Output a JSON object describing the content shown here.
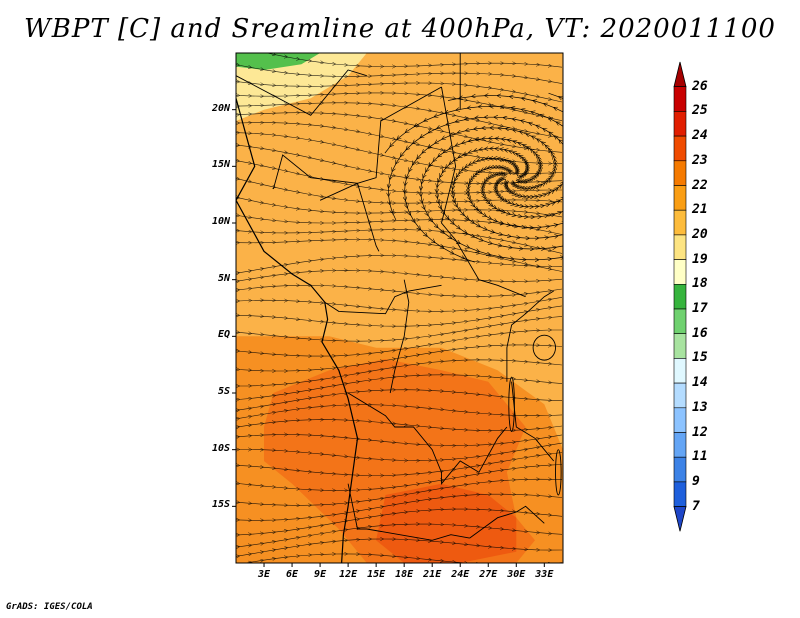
{
  "title": "WBPT [C] and Sreamline at 400hPa, VT: 2020011100",
  "footer": "GrADS: IGES/COLA",
  "map": {
    "lon_range": [
      0,
      35
    ],
    "lat_range": [
      -20,
      25
    ],
    "lat_ticks": [
      {
        "value": 20,
        "label": "20N"
      },
      {
        "value": 15,
        "label": "15N"
      },
      {
        "value": 10,
        "label": "10N"
      },
      {
        "value": 5,
        "label": "5N"
      },
      {
        "value": 0,
        "label": "EQ"
      },
      {
        "value": -5,
        "label": "5S"
      },
      {
        "value": -10,
        "label": "10S"
      },
      {
        "value": -15,
        "label": "15S"
      }
    ],
    "lon_ticks": [
      {
        "value": 3,
        "label": "3E"
      },
      {
        "value": 6,
        "label": "6E"
      },
      {
        "value": 9,
        "label": "9E"
      },
      {
        "value": 12,
        "label": "12E"
      },
      {
        "value": 15,
        "label": "15E"
      },
      {
        "value": 18,
        "label": "18E"
      },
      {
        "value": 21,
        "label": "21E"
      },
      {
        "value": 24,
        "label": "24E"
      },
      {
        "value": 27,
        "label": "27E"
      },
      {
        "value": 30,
        "label": "30E"
      },
      {
        "value": 33,
        "label": "33E"
      }
    ],
    "fields": {
      "background_class": "20-21",
      "regions": [
        {
          "class": "18-19",
          "description": "pale yellow northwest corner",
          "lonlat": [
            [
              0,
              25
            ],
            [
              14,
              25
            ],
            [
              12,
              23
            ],
            [
              8,
              21
            ],
            [
              3,
              20
            ],
            [
              0,
              19
            ]
          ]
        },
        {
          "class": "17-18",
          "description": "green patch",
          "lonlat": [
            [
              0,
              25
            ],
            [
              9,
              25
            ],
            [
              7,
              24
            ],
            [
              3,
              23.5
            ],
            [
              0,
              23.8
            ]
          ]
        },
        {
          "class": "21-22",
          "description": "orange band south",
          "lonlat": [
            [
              0,
              0
            ],
            [
              10,
              0
            ],
            [
              15,
              -1
            ],
            [
              22,
              -1
            ],
            [
              28,
              -3
            ],
            [
              33,
              -6
            ],
            [
              35,
              -10
            ],
            [
              35,
              -20
            ],
            [
              0,
              -20
            ]
          ]
        },
        {
          "class": "22-23",
          "description": "dark orange core",
          "lonlat": [
            [
              4,
              -5
            ],
            [
              10,
              -3
            ],
            [
              16,
              -2
            ],
            [
              22,
              -3
            ],
            [
              27,
              -4
            ],
            [
              31,
              -8
            ],
            [
              29,
              -12
            ],
            [
              30,
              -16
            ],
            [
              32,
              -18
            ],
            [
              30,
              -20
            ],
            [
              14,
              -20
            ],
            [
              11,
              -17
            ],
            [
              6,
              -13
            ],
            [
              3,
              -11
            ],
            [
              3,
              -8
            ]
          ]
        },
        {
          "class": "23-24",
          "description": "red-orange maximum",
          "lonlat": [
            [
              16,
              -14
            ],
            [
              22,
              -13
            ],
            [
              27,
              -14
            ],
            [
              30,
              -16
            ],
            [
              30,
              -19
            ],
            [
              24,
              -20
            ],
            [
              18,
              -20
            ],
            [
              15,
              -18
            ]
          ]
        }
      ]
    },
    "streamline_center": {
      "lon": 29.5,
      "lat": 14
    },
    "coastlines": [
      [
        [
          0,
          21
        ],
        [
          1,
          18
        ],
        [
          2,
          15
        ],
        [
          0,
          12
        ],
        [
          2,
          9
        ],
        [
          3,
          7.5
        ],
        [
          6,
          5.5
        ],
        [
          8,
          4.5
        ],
        [
          9.5,
          3
        ],
        [
          9.8,
          1.5
        ],
        [
          9.2,
          -0.5
        ],
        [
          11,
          -3
        ],
        [
          12,
          -5.5
        ],
        [
          13,
          -9
        ],
        [
          12.5,
          -12
        ],
        [
          12,
          -15
        ],
        [
          11.5,
          -17.5
        ],
        [
          11.3,
          -20
        ]
      ]
    ],
    "borders": [
      [
        [
          0,
          23
        ],
        [
          8,
          19.5
        ],
        [
          12,
          23.5
        ],
        [
          14,
          23
        ]
      ],
      [
        [
          4,
          13
        ],
        [
          5,
          16
        ],
        [
          8,
          14
        ],
        [
          13,
          13.5
        ],
        [
          15,
          8
        ],
        [
          15.3,
          7.5
        ]
      ],
      [
        [
          13,
          13.5
        ],
        [
          15,
          14
        ],
        [
          15.5,
          19
        ],
        [
          22,
          22
        ]
      ],
      [
        [
          24,
          20
        ],
        [
          24,
          25
        ]
      ],
      [
        [
          22,
          22
        ],
        [
          23.5,
          15
        ],
        [
          22,
          10
        ],
        [
          23.5,
          8.5
        ],
        [
          26,
          5
        ],
        [
          28,
          4.5
        ],
        [
          31,
          3.5
        ]
      ],
      [
        [
          9,
          12
        ],
        [
          13,
          13.5
        ]
      ],
      [
        [
          9.5,
          3
        ],
        [
          11,
          2.2
        ],
        [
          16,
          2
        ],
        [
          17,
          3.5
        ],
        [
          18.5,
          4
        ],
        [
          22,
          4.5
        ]
      ],
      [
        [
          18,
          5
        ],
        [
          18.5,
          3
        ],
        [
          18,
          0
        ],
        [
          17,
          -3
        ],
        [
          16.5,
          -5
        ]
      ],
      [
        [
          12,
          -5
        ],
        [
          16,
          -7
        ],
        [
          17,
          -8
        ],
        [
          19,
          -8
        ],
        [
          21,
          -10
        ],
        [
          22,
          -12
        ],
        [
          22,
          -13
        ],
        [
          24,
          -11
        ],
        [
          26,
          -12
        ],
        [
          28,
          -9
        ],
        [
          29,
          -8
        ]
      ],
      [
        [
          12,
          -13
        ],
        [
          13,
          -17
        ],
        [
          14,
          -17
        ],
        [
          21,
          -18
        ],
        [
          23,
          -17.5
        ],
        [
          25,
          -17.8
        ]
      ],
      [
        [
          29,
          -4
        ],
        [
          29,
          -1
        ],
        [
          29.5,
          1
        ],
        [
          31,
          2
        ],
        [
          33,
          3.5
        ],
        [
          34,
          4
        ]
      ],
      [
        [
          29.5,
          -4
        ],
        [
          30,
          -8
        ],
        [
          32,
          -9
        ],
        [
          33,
          -10
        ],
        [
          34,
          -11
        ]
      ],
      [
        [
          25,
          -17.8
        ],
        [
          28,
          -16
        ],
        [
          30,
          -15.5
        ],
        [
          31,
          -15
        ],
        [
          33,
          -16.5
        ]
      ],
      [
        [
          20,
          -20
        ],
        [
          20,
          -22
        ]
      ]
    ],
    "lakes": [
      {
        "lon": 33,
        "lat": -1,
        "rx": 1.2,
        "ry": 1.1
      },
      {
        "lon": 29.5,
        "lat": -6,
        "rx": 0.3,
        "ry": 2.4
      },
      {
        "lon": 34.5,
        "lat": -12,
        "rx": 0.3,
        "ry": 2.0
      }
    ]
  },
  "colorbar": {
    "levels": [
      "26",
      "25",
      "24",
      "23",
      "22",
      "21",
      "20",
      "19",
      "18",
      "17",
      "16",
      "15",
      "14",
      "13",
      "12",
      "11",
      "9",
      "7"
    ],
    "colors": [
      "#a50000",
      "#c80000",
      "#e11e00",
      "#f04b00",
      "#f57a00",
      "#fa9e14",
      "#fdbc3c",
      "#fde482",
      "#ffffc6",
      "#36b43d",
      "#6fd16f",
      "#a8e3a0",
      "#e0f8ff",
      "#b4dcff",
      "#8cc3ff",
      "#64a5f5",
      "#3c82e6",
      "#1e5fdc",
      "#1e46c8"
    ]
  },
  "field_colors": {
    "17-18": "#54c04c",
    "18-19": "#fde896",
    "19-20": "#fdd26e",
    "20-21": "#fbb248",
    "21-22": "#f69022",
    "22-23": "#f37418",
    "23-24": "#ee5a10"
  },
  "line_color": "#000000"
}
